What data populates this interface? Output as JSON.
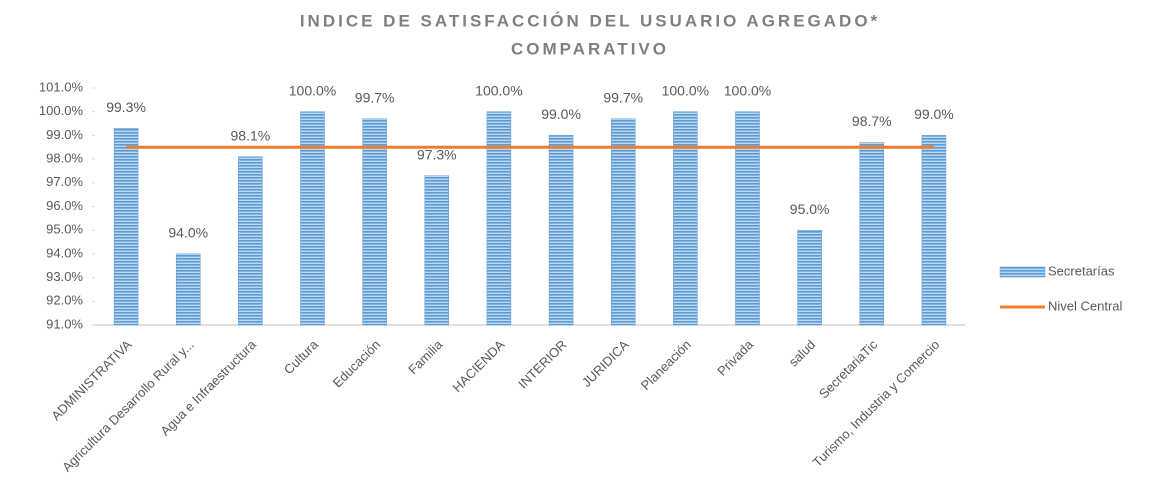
{
  "chart_data": {
    "type": "bar",
    "title": [
      "INDICE DE SATISFACCIÓN DEL USUARIO AGREGADO*",
      "COMPARATIVO"
    ],
    "categories": [
      "ADMINISTRATIVA",
      "Agricultura Desarrollo Rural y...",
      "Agua e Infraestructura",
      "Cultura",
      "Educación",
      "Familia",
      "HACIENDA",
      "INTERIOR",
      "JURIDICA",
      "Planeación",
      "Privada",
      "salud",
      "SecretariaTic",
      "Turismo, Industria y Comercio"
    ],
    "series": [
      {
        "name": "Secretarías",
        "type": "bar",
        "color": "#5b9bd5",
        "values": [
          99.3,
          94.0,
          98.1,
          100.0,
          99.7,
          97.3,
          100.0,
          99.0,
          99.7,
          100.0,
          100.0,
          95.0,
          98.7,
          99.0
        ],
        "value_labels": [
          "99.3%",
          "94.0%",
          "98.1%",
          "100.0%",
          "99.7%",
          "97.3%",
          "100.0%",
          "99.0%",
          "99.7%",
          "100.0%",
          "100.0%",
          "95.0%",
          "98.7%",
          "99.0%"
        ]
      },
      {
        "name": "Nivel Central",
        "type": "line",
        "color": "#ed7d31",
        "values": [
          98.5,
          98.5,
          98.5,
          98.5,
          98.5,
          98.5,
          98.5,
          98.5,
          98.5,
          98.5,
          98.5,
          98.5,
          98.5,
          98.5
        ]
      }
    ],
    "ylim": [
      91,
      101
    ],
    "yticks": [
      {
        "value": 91,
        "label": "91.0%"
      },
      {
        "value": 92,
        "label": "92.0%"
      },
      {
        "value": 93,
        "label": "93.0%"
      },
      {
        "value": 94,
        "label": "94.0%"
      },
      {
        "value": 95,
        "label": "95.0%"
      },
      {
        "value": 96,
        "label": "96.0%"
      },
      {
        "value": 97,
        "label": "97.0%"
      },
      {
        "value": 98,
        "label": "98.0%"
      },
      {
        "value": 99,
        "label": "99.0%"
      },
      {
        "value": 100,
        "label": "100.0%"
      },
      {
        "value": 101,
        "label": "101.0%"
      }
    ],
    "grid": false,
    "legend": "right"
  }
}
